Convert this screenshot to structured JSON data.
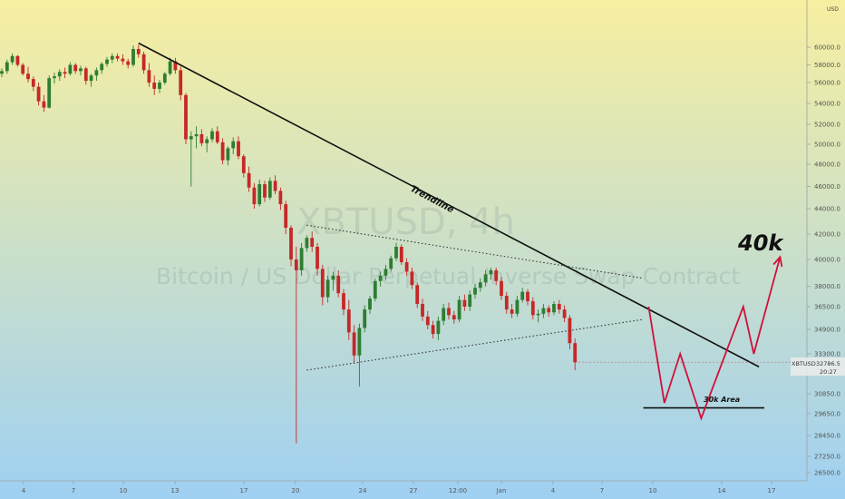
{
  "chart_data": {
    "type": "candlestick",
    "watermark": {
      "symbol": "XBTUSD, 4h",
      "description": "Bitcoin / US Dollar Perpetual Inverse Swap Contract"
    },
    "currency": "USD",
    "y_axis": {
      "ticks": [
        "60000.0",
        "58000.0",
        "56000.0",
        "54000.0",
        "52000.0",
        "50000.0",
        "48000.0",
        "46000.0",
        "44000.0",
        "42000.0",
        "40000.0",
        "38000.0",
        "36500.0",
        "34900.0",
        "33300.0",
        "30850.0",
        "29650.0",
        "28450.0",
        "27250.0",
        "26500.0"
      ],
      "ylim": [
        26500,
        62000
      ]
    },
    "x_axis": {
      "ticks": [
        "4",
        "7",
        "10",
        "13",
        "17",
        "20",
        "24",
        "27",
        "12:00",
        "Jan",
        "4",
        "7",
        "10",
        "14",
        "17"
      ]
    },
    "current_price": {
      "symbol": "XBTUSD",
      "value": "32786.5",
      "time": "20:27",
      "price": 32786.5
    },
    "candles": [
      [
        57000,
        57600,
        56600,
        57300
      ],
      [
        57300,
        58600,
        57000,
        58300
      ],
      [
        58300,
        59300,
        58000,
        59000
      ],
      [
        59000,
        59100,
        57800,
        58000
      ],
      [
        58000,
        58200,
        56800,
        57000
      ],
      [
        57000,
        57800,
        56000,
        56400
      ],
      [
        56400,
        56700,
        55200,
        55600
      ],
      [
        55600,
        56000,
        53800,
        54200
      ],
      [
        54200,
        54800,
        53200,
        53600
      ],
      [
        53600,
        56800,
        53500,
        56500
      ],
      [
        56500,
        57100,
        55900,
        56700
      ],
      [
        56700,
        57500,
        56200,
        57200
      ],
      [
        57200,
        57700,
        56500,
        57000
      ],
      [
        57000,
        58300,
        56800,
        58000
      ],
      [
        58000,
        58200,
        57000,
        57300
      ],
      [
        57300,
        57900,
        56800,
        57600
      ],
      [
        57600,
        57800,
        55800,
        56200
      ],
      [
        56200,
        57000,
        55600,
        56800
      ],
      [
        56800,
        57700,
        56200,
        57400
      ],
      [
        57400,
        58300,
        57000,
        58100
      ],
      [
        58100,
        58900,
        57800,
        58600
      ],
      [
        58600,
        59300,
        58200,
        59000
      ],
      [
        59000,
        59300,
        58400,
        58700
      ],
      [
        58700,
        59200,
        58000,
        58400
      ],
      [
        58400,
        58700,
        57600,
        58000
      ],
      [
        58000,
        60200,
        57800,
        59800
      ],
      [
        59800,
        60300,
        58800,
        59200
      ],
      [
        59200,
        59500,
        57000,
        57400
      ],
      [
        57400,
        58200,
        55600,
        56000
      ],
      [
        56000,
        56800,
        54800,
        55400
      ],
      [
        55400,
        56300,
        55000,
        56000
      ],
      [
        56000,
        57200,
        55800,
        57000
      ],
      [
        57000,
        58800,
        56800,
        58400
      ],
      [
        58400,
        58800,
        57000,
        57400
      ],
      [
        57400,
        57800,
        54300,
        54800
      ],
      [
        54800,
        55000,
        50000,
        50500
      ],
      [
        50500,
        51300,
        46000,
        50800
      ],
      [
        50800,
        51800,
        49600,
        51000
      ],
      [
        51000,
        51500,
        49800,
        50100
      ],
      [
        50100,
        50800,
        49200,
        50500
      ],
      [
        50500,
        51600,
        50200,
        51300
      ],
      [
        51300,
        51800,
        50000,
        50200
      ],
      [
        50200,
        50600,
        48000,
        48400
      ],
      [
        48400,
        49800,
        47900,
        49600
      ],
      [
        49600,
        50700,
        49000,
        50300
      ],
      [
        50300,
        50800,
        48500,
        48800
      ],
      [
        48800,
        49000,
        46800,
        47200
      ],
      [
        47200,
        47800,
        45500,
        45900
      ],
      [
        45900,
        46300,
        44000,
        44400
      ],
      [
        44400,
        46600,
        44200,
        46200
      ],
      [
        46200,
        46500,
        44600,
        45000
      ],
      [
        45000,
        46800,
        44800,
        46500
      ],
      [
        46500,
        47000,
        45300,
        45600
      ],
      [
        45600,
        45900,
        43900,
        44400
      ],
      [
        44400,
        44700,
        42000,
        42500
      ],
      [
        42500,
        42700,
        39500,
        40000
      ],
      [
        40000,
        41000,
        28000,
        39200
      ],
      [
        39200,
        41300,
        38800,
        40900
      ],
      [
        40900,
        41900,
        40600,
        41700
      ],
      [
        41700,
        42200,
        40600,
        41000
      ],
      [
        41000,
        41300,
        38800,
        39300
      ],
      [
        39300,
        39600,
        36600,
        37200
      ],
      [
        37200,
        38800,
        36800,
        38500
      ],
      [
        38500,
        39100,
        37700,
        38800
      ],
      [
        38800,
        39200,
        37200,
        37500
      ],
      [
        37500,
        37800,
        35900,
        36300
      ],
      [
        36300,
        37000,
        34200,
        34700
      ],
      [
        34700,
        35200,
        32700,
        33200
      ],
      [
        33200,
        35300,
        31300,
        35000
      ],
      [
        35000,
        36600,
        34700,
        36300
      ],
      [
        36300,
        37300,
        36000,
        37100
      ],
      [
        37100,
        38600,
        36900,
        38400
      ],
      [
        38400,
        39100,
        38000,
        38800
      ],
      [
        38800,
        39600,
        38500,
        39300
      ],
      [
        39300,
        40300,
        39100,
        40100
      ],
      [
        40100,
        41300,
        39900,
        41000
      ],
      [
        41000,
        41200,
        39600,
        39800
      ],
      [
        39800,
        40100,
        38800,
        39100
      ],
      [
        39100,
        39400,
        37800,
        38100
      ],
      [
        38100,
        38300,
        36400,
        36700
      ],
      [
        36700,
        37100,
        35500,
        35800
      ],
      [
        35800,
        36200,
        34900,
        35200
      ],
      [
        35200,
        35500,
        34300,
        34600
      ],
      [
        34600,
        35800,
        34200,
        35500
      ],
      [
        35500,
        36700,
        35200,
        36400
      ],
      [
        36400,
        36800,
        35600,
        35900
      ],
      [
        35900,
        36200,
        35300,
        35600
      ],
      [
        35600,
        37300,
        35400,
        37000
      ],
      [
        37000,
        37400,
        36200,
        36500
      ],
      [
        36500,
        37700,
        36200,
        37400
      ],
      [
        37400,
        38200,
        37100,
        37900
      ],
      [
        37900,
        38600,
        37600,
        38300
      ],
      [
        38300,
        39200,
        38000,
        38900
      ],
      [
        38900,
        39400,
        38500,
        39200
      ],
      [
        39200,
        39400,
        38100,
        38400
      ],
      [
        38400,
        38700,
        37000,
        37300
      ],
      [
        37300,
        37600,
        36000,
        36300
      ],
      [
        36300,
        36700,
        35700,
        36000
      ],
      [
        36000,
        37300,
        35800,
        37000
      ],
      [
        37000,
        37900,
        36800,
        37600
      ],
      [
        37600,
        37800,
        36600,
        36900
      ],
      [
        36900,
        37200,
        35600,
        35900
      ],
      [
        35900,
        36300,
        35400,
        36000
      ],
      [
        36000,
        36700,
        35700,
        36400
      ],
      [
        36400,
        36600,
        35800,
        36100
      ],
      [
        36100,
        36900,
        35900,
        36700
      ],
      [
        36700,
        37000,
        36000,
        36300
      ],
      [
        36300,
        36600,
        35400,
        35700
      ],
      [
        35700,
        35900,
        33600,
        34000
      ],
      [
        34000,
        34300,
        32300,
        32786
      ]
    ],
    "lines": {
      "trendline": {
        "label": "Trendline",
        "from": {
          "i": 26,
          "price": 60500
        },
        "to": {
          "i": 144,
          "price": 32500
        }
      },
      "triangle_upper": {
        "from": {
          "i": 58,
          "price": 42700
        },
        "to": {
          "i": 122,
          "price": 38600
        }
      },
      "triangle_lower": {
        "from": {
          "i": 58,
          "price": 32300
        },
        "to": {
          "i": 122,
          "price": 35600
        }
      },
      "support": {
        "label": "30k Area",
        "from": {
          "i": 122,
          "price": 30000
        },
        "to": {
          "i": 145,
          "price": 30000
        }
      }
    },
    "projection": {
      "target_label": "40k",
      "points": [
        {
          "i": 123,
          "price": 36500
        },
        {
          "i": 126,
          "price": 30300
        },
        {
          "i": 129,
          "price": 33300
        },
        {
          "i": 133,
          "price": 29400
        },
        {
          "i": 141,
          "price": 36500
        },
        {
          "i": 143,
          "price": 33300
        },
        {
          "i": 148,
          "price": 40200
        }
      ]
    },
    "colors": {
      "up": "#2e7d32",
      "down": "#c62828",
      "trendline": "#111111",
      "triangle": "#333333",
      "projection": "#d0103a",
      "support": "#111111",
      "bg_top": "#f7efa0",
      "bg_bottom": "#9fd0f2"
    }
  }
}
